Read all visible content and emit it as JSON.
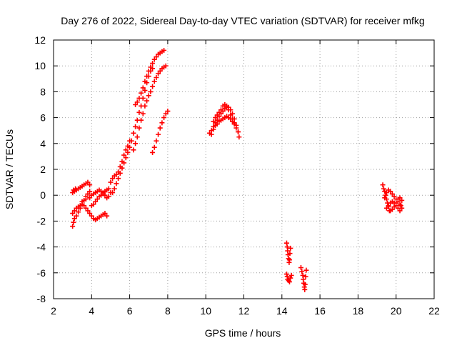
{
  "chart_data": {
    "type": "scatter",
    "title": "Day 276 of 2022, Sidereal Day-to-day VTEC variation (SDTVAR) for receiver mfkg",
    "xlabel": "GPS time / hours",
    "ylabel": "SDTVAR / TECUs",
    "xlim": [
      2,
      22
    ],
    "ylim": [
      -8,
      12
    ],
    "xticks": [
      2,
      4,
      6,
      8,
      10,
      12,
      14,
      16,
      18,
      20,
      22
    ],
    "yticks": [
      -8,
      -6,
      -4,
      -2,
      0,
      2,
      4,
      6,
      8,
      10,
      12
    ],
    "grid": true,
    "marker": "+",
    "series_color": "#ff0000",
    "series": [
      {
        "name": "SDTVAR",
        "points": [
          [
            3.0,
            0.2
          ],
          [
            3.05,
            0.4
          ],
          [
            3.1,
            0.3
          ],
          [
            3.15,
            0.5
          ],
          [
            3.2,
            0.4
          ],
          [
            3.3,
            0.5
          ],
          [
            3.4,
            0.6
          ],
          [
            3.5,
            0.7
          ],
          [
            3.6,
            0.8
          ],
          [
            3.7,
            0.9
          ],
          [
            3.8,
            1.0
          ],
          [
            3.9,
            0.8
          ],
          [
            3.0,
            -2.4
          ],
          [
            3.05,
            -2.1
          ],
          [
            3.1,
            -1.8
          ],
          [
            3.2,
            -1.6
          ],
          [
            3.3,
            -1.3
          ],
          [
            3.4,
            -1.0
          ],
          [
            3.5,
            -0.7
          ],
          [
            3.6,
            -0.4
          ],
          [
            3.7,
            -0.1
          ],
          [
            3.8,
            0.1
          ],
          [
            3.9,
            0.3
          ],
          [
            3.0,
            -1.4
          ],
          [
            3.1,
            -1.2
          ],
          [
            3.2,
            -1.0
          ],
          [
            3.3,
            -0.9
          ],
          [
            3.4,
            -0.8
          ],
          [
            3.5,
            -0.7
          ],
          [
            3.6,
            -0.8
          ],
          [
            3.7,
            -1.0
          ],
          [
            3.8,
            -1.2
          ],
          [
            3.9,
            -1.4
          ],
          [
            4.0,
            -1.6
          ],
          [
            4.1,
            -1.8
          ],
          [
            4.2,
            -1.9
          ],
          [
            4.3,
            -1.8
          ],
          [
            4.4,
            -1.7
          ],
          [
            4.5,
            -1.6
          ],
          [
            4.6,
            -1.5
          ],
          [
            4.7,
            -1.4
          ],
          [
            4.8,
            -1.6
          ],
          [
            3.5,
            -0.5
          ],
          [
            3.7,
            -0.3
          ],
          [
            3.9,
            -0.2
          ],
          [
            4.0,
            0.0
          ],
          [
            4.1,
            0.1
          ],
          [
            4.2,
            0.2
          ],
          [
            4.3,
            0.3
          ],
          [
            4.4,
            0.4
          ],
          [
            4.5,
            0.3
          ],
          [
            4.6,
            0.2
          ],
          [
            4.7,
            0.3
          ],
          [
            4.8,
            0.4
          ],
          [
            4.9,
            0.5
          ],
          [
            4.0,
            -0.8
          ],
          [
            4.1,
            -0.7
          ],
          [
            4.2,
            -0.5
          ],
          [
            4.3,
            -0.3
          ],
          [
            4.4,
            -0.1
          ],
          [
            4.5,
            0.0
          ],
          [
            4.6,
            0.1
          ],
          [
            4.7,
            0.0
          ],
          [
            4.8,
            -0.2
          ],
          [
            4.9,
            -0.1
          ],
          [
            5.0,
            0.2
          ],
          [
            5.0,
            1.0
          ],
          [
            5.1,
            1.3
          ],
          [
            5.2,
            1.5
          ],
          [
            5.3,
            1.6
          ],
          [
            5.4,
            1.8
          ],
          [
            5.5,
            2.2
          ],
          [
            5.6,
            2.6
          ],
          [
            5.7,
            3.1
          ],
          [
            5.8,
            3.5
          ],
          [
            5.9,
            3.8
          ],
          [
            6.0,
            4.2
          ],
          [
            5.1,
            0.2
          ],
          [
            5.2,
            0.5
          ],
          [
            5.3,
            0.9
          ],
          [
            5.4,
            1.3
          ],
          [
            5.5,
            1.7
          ],
          [
            5.6,
            2.1
          ],
          [
            5.7,
            2.5
          ],
          [
            5.8,
            2.9
          ],
          [
            5.9,
            3.3
          ],
          [
            6.0,
            3.7
          ],
          [
            6.1,
            4.2
          ],
          [
            6.2,
            4.8
          ],
          [
            6.3,
            5.3
          ],
          [
            6.4,
            5.8
          ],
          [
            6.5,
            6.4
          ],
          [
            6.6,
            6.9
          ],
          [
            6.7,
            7.5
          ],
          [
            6.8,
            8.1
          ],
          [
            6.9,
            8.7
          ],
          [
            7.0,
            9.2
          ],
          [
            7.1,
            9.6
          ],
          [
            7.2,
            9.8
          ],
          [
            6.2,
            3.5
          ],
          [
            6.3,
            4.0
          ],
          [
            6.4,
            4.5
          ],
          [
            6.5,
            5.2
          ],
          [
            6.6,
            5.8
          ],
          [
            6.7,
            6.3
          ],
          [
            6.8,
            6.9
          ],
          [
            6.9,
            7.3
          ],
          [
            7.0,
            7.7
          ],
          [
            7.1,
            8.0
          ],
          [
            7.2,
            8.4
          ],
          [
            7.3,
            8.8
          ],
          [
            7.4,
            9.1
          ],
          [
            7.5,
            9.4
          ],
          [
            7.6,
            9.6
          ],
          [
            7.7,
            9.8
          ],
          [
            7.8,
            9.9
          ],
          [
            7.9,
            10.0
          ],
          [
            6.3,
            7.0
          ],
          [
            6.4,
            7.2
          ],
          [
            6.5,
            7.5
          ],
          [
            6.6,
            7.9
          ],
          [
            6.7,
            8.3
          ],
          [
            6.8,
            8.8
          ],
          [
            6.9,
            9.2
          ],
          [
            7.0,
            9.6
          ],
          [
            7.1,
            9.9
          ],
          [
            7.2,
            10.2
          ],
          [
            7.3,
            10.5
          ],
          [
            7.4,
            10.7
          ],
          [
            7.5,
            10.9
          ],
          [
            7.6,
            11.0
          ],
          [
            7.7,
            11.1
          ],
          [
            7.8,
            11.2
          ],
          [
            7.2,
            3.3
          ],
          [
            7.3,
            3.7
          ],
          [
            7.4,
            4.2
          ],
          [
            7.5,
            4.7
          ],
          [
            7.6,
            5.2
          ],
          [
            7.7,
            5.6
          ],
          [
            7.8,
            6.0
          ],
          [
            7.9,
            6.3
          ],
          [
            8.0,
            6.5
          ],
          [
            10.2,
            4.8
          ],
          [
            10.3,
            5.0
          ],
          [
            10.4,
            5.3
          ],
          [
            10.5,
            5.6
          ],
          [
            10.6,
            5.8
          ],
          [
            10.7,
            6.1
          ],
          [
            10.8,
            6.3
          ],
          [
            10.9,
            6.5
          ],
          [
            11.0,
            6.7
          ],
          [
            11.1,
            6.8
          ],
          [
            11.2,
            6.8
          ],
          [
            11.3,
            6.6
          ],
          [
            11.4,
            6.3
          ],
          [
            11.5,
            5.9
          ],
          [
            11.6,
            5.4
          ],
          [
            11.7,
            4.9
          ],
          [
            11.75,
            4.5
          ],
          [
            10.3,
            4.7
          ],
          [
            10.4,
            5.1
          ],
          [
            10.5,
            5.4
          ],
          [
            10.6,
            5.5
          ],
          [
            10.7,
            5.7
          ],
          [
            10.8,
            5.8
          ],
          [
            10.9,
            5.9
          ],
          [
            11.0,
            6.0
          ],
          [
            11.1,
            6.1
          ],
          [
            11.2,
            6.0
          ],
          [
            11.3,
            5.9
          ],
          [
            11.4,
            5.7
          ],
          [
            11.5,
            5.5
          ],
          [
            11.6,
            5.2
          ],
          [
            11.7,
            4.9
          ],
          [
            10.4,
            5.7
          ],
          [
            10.5,
            6.0
          ],
          [
            10.6,
            6.2
          ],
          [
            10.7,
            6.4
          ],
          [
            10.8,
            6.6
          ],
          [
            10.9,
            6.9
          ],
          [
            11.0,
            7.0
          ],
          [
            11.1,
            6.9
          ],
          [
            11.2,
            6.6
          ],
          [
            11.3,
            6.2
          ],
          [
            11.4,
            5.9
          ],
          [
            11.5,
            5.6
          ],
          [
            14.25,
            -3.7
          ],
          [
            14.28,
            -4.0
          ],
          [
            14.3,
            -4.3
          ],
          [
            14.32,
            -4.6
          ],
          [
            14.35,
            -4.9
          ],
          [
            14.38,
            -5.2
          ],
          [
            14.4,
            -5.0
          ],
          [
            14.42,
            -4.5
          ],
          [
            14.45,
            -4.1
          ],
          [
            14.25,
            -6.1
          ],
          [
            14.28,
            -6.3
          ],
          [
            14.3,
            -6.5
          ],
          [
            14.35,
            -6.6
          ],
          [
            14.4,
            -6.7
          ],
          [
            14.45,
            -6.4
          ],
          [
            14.5,
            -6.2
          ],
          [
            15.0,
            -5.6
          ],
          [
            15.05,
            -5.9
          ],
          [
            15.1,
            -6.2
          ],
          [
            15.12,
            -6.5
          ],
          [
            15.15,
            -6.8
          ],
          [
            15.18,
            -7.1
          ],
          [
            15.2,
            -7.3
          ],
          [
            15.22,
            -6.9
          ],
          [
            15.25,
            -6.3
          ],
          [
            15.28,
            -5.8
          ],
          [
            19.3,
            0.8
          ],
          [
            19.35,
            0.5
          ],
          [
            19.4,
            0.3
          ],
          [
            19.45,
            0.0
          ],
          [
            19.5,
            -0.3
          ],
          [
            19.55,
            -0.6
          ],
          [
            19.6,
            -0.9
          ],
          [
            19.65,
            -1.2
          ],
          [
            19.4,
            -0.2
          ],
          [
            19.5,
            0.2
          ],
          [
            19.6,
            0.4
          ],
          [
            19.7,
            0.3
          ],
          [
            19.8,
            0.1
          ],
          [
            19.9,
            -0.1
          ],
          [
            20.0,
            -0.3
          ],
          [
            20.1,
            -0.5
          ],
          [
            20.2,
            -0.7
          ],
          [
            19.5,
            -1.0
          ],
          [
            19.6,
            -0.8
          ],
          [
            19.7,
            -0.6
          ],
          [
            19.8,
            -0.5
          ],
          [
            19.9,
            -0.6
          ],
          [
            20.0,
            -0.8
          ],
          [
            20.1,
            -1.0
          ],
          [
            20.2,
            -1.2
          ],
          [
            20.3,
            -1.0
          ],
          [
            19.7,
            -1.2
          ],
          [
            19.8,
            -1.1
          ],
          [
            19.9,
            -0.9
          ],
          [
            20.0,
            -0.6
          ],
          [
            20.1,
            -0.3
          ],
          [
            20.2,
            -0.2
          ],
          [
            20.3,
            -0.4
          ],
          [
            20.25,
            -0.8
          ]
        ]
      }
    ]
  }
}
